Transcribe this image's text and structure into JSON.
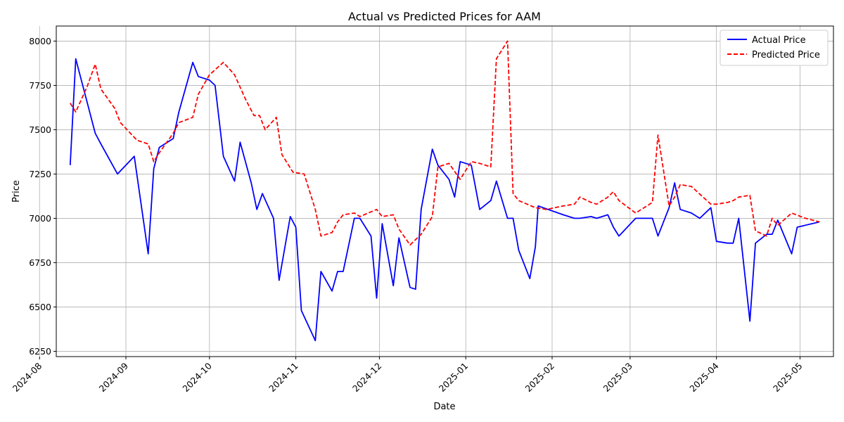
{
  "chart_data": {
    "type": "line",
    "title": "Actual vs Predicted Prices for AAM",
    "xlabel": "Date",
    "ylabel": "Price",
    "ylim": [
      6220,
      8085
    ],
    "xlim": [
      "2024-08-07",
      "2025-05-13"
    ],
    "grid": true,
    "legend_position": "top-right",
    "y_ticks": [
      6250,
      6500,
      6750,
      7000,
      7250,
      7500,
      7750,
      8000
    ],
    "x_ticks": [
      "2024-08",
      "2024-09",
      "2024-10",
      "2024-11",
      "2024-12",
      "2025-01",
      "2025-02",
      "2025-03",
      "2025-04",
      "2025-05"
    ],
    "series": [
      {
        "name": "Actual Price",
        "color": "#0000ff",
        "style": "solid",
        "points": [
          [
            "2024-08-12",
            7300
          ],
          [
            "2024-08-14",
            7900
          ],
          [
            "2024-08-19",
            7600
          ],
          [
            "2024-08-21",
            7480
          ],
          [
            "2024-08-23",
            7420
          ],
          [
            "2024-08-29",
            7250
          ],
          [
            "2024-09-04",
            7350
          ],
          [
            "2024-09-09",
            6800
          ],
          [
            "2024-09-11",
            7280
          ],
          [
            "2024-09-13",
            7400
          ],
          [
            "2024-09-18",
            7450
          ],
          [
            "2024-09-20",
            7600
          ],
          [
            "2024-09-25",
            7880
          ],
          [
            "2024-09-27",
            7800
          ],
          [
            "2024-10-01",
            7780
          ],
          [
            "2024-10-03",
            7750
          ],
          [
            "2024-10-06",
            7350
          ],
          [
            "2024-10-10",
            7210
          ],
          [
            "2024-10-12",
            7430
          ],
          [
            "2024-10-16",
            7200
          ],
          [
            "2024-10-18",
            7050
          ],
          [
            "2024-10-20",
            7140
          ],
          [
            "2024-10-24",
            7000
          ],
          [
            "2024-10-26",
            6650
          ],
          [
            "2024-10-30",
            7010
          ],
          [
            "2024-11-01",
            6950
          ],
          [
            "2024-11-03",
            6480
          ],
          [
            "2024-11-08",
            6310
          ],
          [
            "2024-11-10",
            6700
          ],
          [
            "2024-11-14",
            6590
          ],
          [
            "2024-11-16",
            6700
          ],
          [
            "2024-11-18",
            6700
          ],
          [
            "2024-11-22",
            7000
          ],
          [
            "2024-11-24",
            7000
          ],
          [
            "2024-11-28",
            6900
          ],
          [
            "2024-11-30",
            6550
          ],
          [
            "2024-12-02",
            6970
          ],
          [
            "2024-12-06",
            6620
          ],
          [
            "2024-12-08",
            6890
          ],
          [
            "2024-12-12",
            6610
          ],
          [
            "2024-12-14",
            6600
          ],
          [
            "2024-12-16",
            7050
          ],
          [
            "2024-12-20",
            7390
          ],
          [
            "2024-12-22",
            7300
          ],
          [
            "2024-12-26",
            7220
          ],
          [
            "2024-12-28",
            7120
          ],
          [
            "2024-12-30",
            7320
          ],
          [
            "2025-01-03",
            7300
          ],
          [
            "2025-01-06",
            7050
          ],
          [
            "2025-01-10",
            7100
          ],
          [
            "2025-01-12",
            7210
          ],
          [
            "2025-01-16",
            7000
          ],
          [
            "2025-01-18",
            7000
          ],
          [
            "2025-01-20",
            6820
          ],
          [
            "2025-01-24",
            6660
          ],
          [
            "2025-01-26",
            6840
          ],
          [
            "2025-01-27",
            7070
          ],
          [
            "2025-02-05",
            7020
          ],
          [
            "2025-02-09",
            7000
          ],
          [
            "2025-02-11",
            7000
          ],
          [
            "2025-02-15",
            7010
          ],
          [
            "2025-02-17",
            7000
          ],
          [
            "2025-02-21",
            7020
          ],
          [
            "2025-02-23",
            6950
          ],
          [
            "2025-02-25",
            6900
          ],
          [
            "2025-03-03",
            7000
          ],
          [
            "2025-03-09",
            7000
          ],
          [
            "2025-03-11",
            6900
          ],
          [
            "2025-03-15",
            7060
          ],
          [
            "2025-03-17",
            7200
          ],
          [
            "2025-03-19",
            7050
          ],
          [
            "2025-03-23",
            7030
          ],
          [
            "2025-03-26",
            7000
          ],
          [
            "2025-03-30",
            7060
          ],
          [
            "2025-04-01",
            6870
          ],
          [
            "2025-04-05",
            6860
          ],
          [
            "2025-04-07",
            6860
          ],
          [
            "2025-04-09",
            7000
          ],
          [
            "2025-04-13",
            6420
          ],
          [
            "2025-04-15",
            6860
          ],
          [
            "2025-04-19",
            6910
          ],
          [
            "2025-04-21",
            6910
          ],
          [
            "2025-04-23",
            6990
          ],
          [
            "2025-04-28",
            6800
          ],
          [
            "2025-04-30",
            6950
          ],
          [
            "2025-05-08",
            6980
          ]
        ]
      },
      {
        "name": "Predicted Price",
        "color": "#ff0000",
        "style": "dashed",
        "points": [
          [
            "2024-08-12",
            7650
          ],
          [
            "2024-08-14",
            7600
          ],
          [
            "2024-08-18",
            7740
          ],
          [
            "2024-08-21",
            7870
          ],
          [
            "2024-08-23",
            7730
          ],
          [
            "2024-08-28",
            7620
          ],
          [
            "2024-08-30",
            7540
          ],
          [
            "2024-09-05",
            7440
          ],
          [
            "2024-09-09",
            7420
          ],
          [
            "2024-09-11",
            7320
          ],
          [
            "2024-09-13",
            7370
          ],
          [
            "2024-09-18",
            7480
          ],
          [
            "2024-09-20",
            7540
          ],
          [
            "2024-09-25",
            7570
          ],
          [
            "2024-09-27",
            7700
          ],
          [
            "2024-10-01",
            7810
          ],
          [
            "2024-10-06",
            7880
          ],
          [
            "2024-10-10",
            7810
          ],
          [
            "2024-10-14",
            7670
          ],
          [
            "2024-10-17",
            7580
          ],
          [
            "2024-10-19",
            7580
          ],
          [
            "2024-10-21",
            7500
          ],
          [
            "2024-10-25",
            7570
          ],
          [
            "2024-10-27",
            7360
          ],
          [
            "2024-10-31",
            7260
          ],
          [
            "2024-11-04",
            7250
          ],
          [
            "2024-11-08",
            7050
          ],
          [
            "2024-11-10",
            6900
          ],
          [
            "2024-11-14",
            6920
          ],
          [
            "2024-11-16",
            6980
          ],
          [
            "2024-11-18",
            7020
          ],
          [
            "2024-11-22",
            7030
          ],
          [
            "2024-11-24",
            7010
          ],
          [
            "2024-11-30",
            7050
          ],
          [
            "2024-12-02",
            7010
          ],
          [
            "2024-12-06",
            7020
          ],
          [
            "2024-12-08",
            6940
          ],
          [
            "2024-12-12",
            6850
          ],
          [
            "2024-12-14",
            6880
          ],
          [
            "2024-12-16",
            6910
          ],
          [
            "2024-12-20",
            7010
          ],
          [
            "2024-12-22",
            7290
          ],
          [
            "2024-12-26",
            7310
          ],
          [
            "2024-12-30",
            7220
          ],
          [
            "2025-01-03",
            7320
          ],
          [
            "2025-01-06",
            7310
          ],
          [
            "2025-01-10",
            7290
          ],
          [
            "2025-01-12",
            7900
          ],
          [
            "2025-01-16",
            8000
          ],
          [
            "2025-01-18",
            7140
          ],
          [
            "2025-01-20",
            7100
          ],
          [
            "2025-01-26",
            7060
          ],
          [
            "2025-01-30",
            7050
          ],
          [
            "2025-02-05",
            7070
          ],
          [
            "2025-02-09",
            7080
          ],
          [
            "2025-02-11",
            7120
          ],
          [
            "2025-02-15",
            7090
          ],
          [
            "2025-02-17",
            7080
          ],
          [
            "2025-02-21",
            7120
          ],
          [
            "2025-02-23",
            7150
          ],
          [
            "2025-02-25",
            7100
          ],
          [
            "2025-03-03",
            7030
          ],
          [
            "2025-03-09",
            7090
          ],
          [
            "2025-03-11",
            7470
          ],
          [
            "2025-03-15",
            7070
          ],
          [
            "2025-03-17",
            7120
          ],
          [
            "2025-03-19",
            7190
          ],
          [
            "2025-03-23",
            7180
          ],
          [
            "2025-03-30",
            7080
          ],
          [
            "2025-04-01",
            7080
          ],
          [
            "2025-04-05",
            7090
          ],
          [
            "2025-04-07",
            7100
          ],
          [
            "2025-04-09",
            7120
          ],
          [
            "2025-04-13",
            7130
          ],
          [
            "2025-04-15",
            6930
          ],
          [
            "2025-04-19",
            6900
          ],
          [
            "2025-04-21",
            7000
          ],
          [
            "2025-04-23",
            6960
          ],
          [
            "2025-04-28",
            7030
          ],
          [
            "2025-05-03",
            7000
          ],
          [
            "2025-05-08",
            6980
          ]
        ]
      }
    ]
  }
}
